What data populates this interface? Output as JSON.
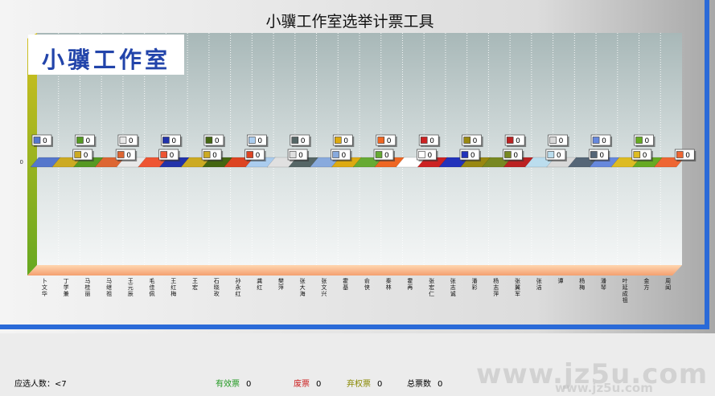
{
  "window": {
    "title": "小骥工作室选举计票工具",
    "logo_text": "小骥工作室"
  },
  "chart_data": {
    "type": "bar",
    "title": "小骥工作室选举计票工具",
    "categories": [
      "卜文华",
      "丁学兼",
      "马桂丽",
      "马继祖",
      "王元辰",
      "毛佳佩",
      "王红梅",
      "王宏",
      "石晓玫",
      "孙永红",
      "龚红",
      "樊萍",
      "张大海",
      "张文兴",
      "霍基",
      "俞侠",
      "秦林",
      "霍再",
      "张宏仁",
      "张志诚",
      "潘彩",
      "杨志萍",
      "张翼军",
      "张洁",
      "谭",
      "杨梅",
      "潘琴",
      "叶延成祖",
      "金方",
      "周闻"
    ],
    "values": [
      0,
      0,
      0,
      0,
      0,
      0,
      0,
      0,
      0,
      0,
      0,
      0,
      0,
      0,
      0,
      0,
      0,
      0,
      0,
      0,
      0,
      0,
      0,
      0,
      0,
      0,
      0,
      0,
      0,
      0
    ],
    "colors": [
      "#5577cc",
      "#ccaa22",
      "#559922",
      "#dd6633",
      "#e8e8e8",
      "#ee5533",
      "#2233aa",
      "#ccaa22",
      "#446611",
      "#dd4422",
      "#aaccee",
      "#e0e0e0",
      "#556666",
      "#88aadd",
      "#ddaa11",
      "#66aa33",
      "#ee6622",
      "#ffffff",
      "#cc2222",
      "#2233bb",
      "#998811",
      "#778822",
      "#bb2222",
      "#bbddee",
      "#d8d8d8",
      "#556677",
      "#6688dd",
      "#ddbb22",
      "#66aa22",
      "#ee6633"
    ],
    "ytick_labels": [
      "0"
    ],
    "ylabel": "",
    "xlabel": ""
  },
  "footer": {
    "candidates_label": "应选人数：",
    "candidates_value": "<7",
    "valid_label": "有效票",
    "valid_value": "0",
    "invalid_label": "废票",
    "invalid_value": "0",
    "abstain_label": "弃权票",
    "abstain_value": "0",
    "total_label": "总票数",
    "total_value": "0"
  },
  "watermark": {
    "text": "www.jz5u.com",
    "text_small": "www.jz5u.com"
  },
  "theme": {
    "valid_color": "#229922",
    "invalid_color": "#cc2222",
    "abstain_color": "#888800"
  }
}
